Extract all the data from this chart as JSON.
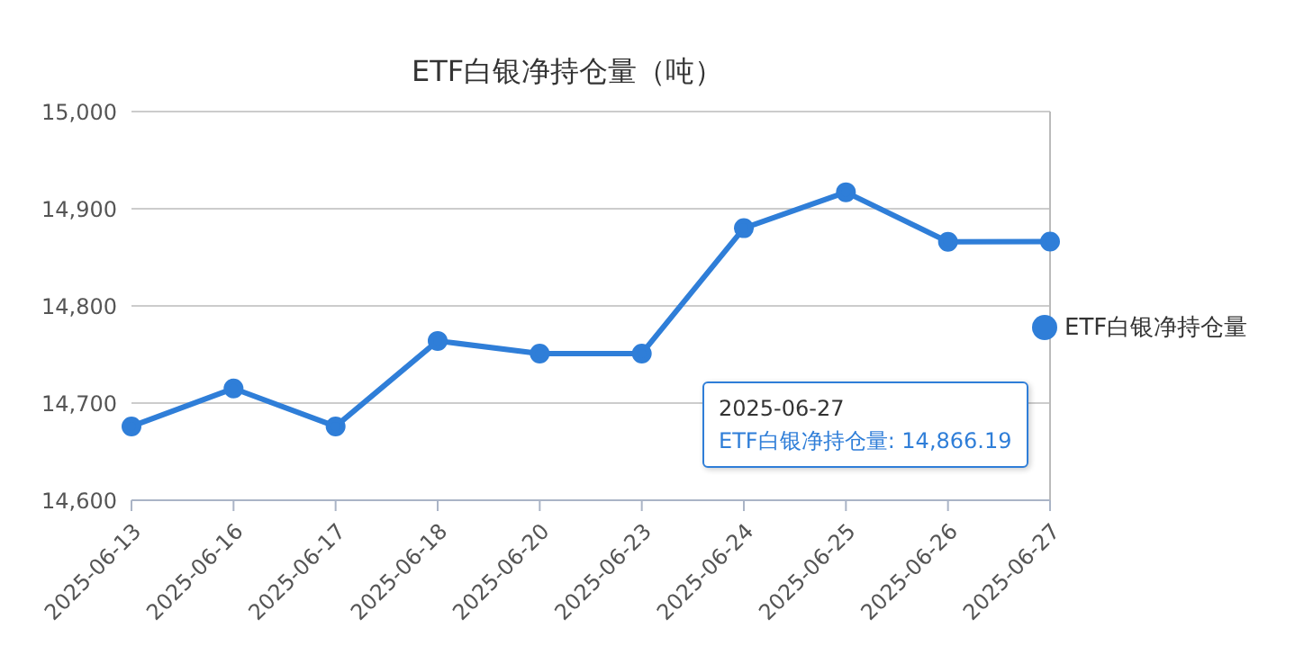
{
  "chart_data": {
    "type": "line",
    "title": "ETF白银净持仓量（吨）",
    "categories": [
      "2025-06-13",
      "2025-06-16",
      "2025-06-17",
      "2025-06-18",
      "2025-06-20",
      "2025-06-23",
      "2025-06-24",
      "2025-06-25",
      "2025-06-26",
      "2025-06-27"
    ],
    "series": [
      {
        "name": "ETF白银净持仓量",
        "color": "#2f7ed8",
        "values": [
          14676,
          14715,
          14676,
          14764,
          14751,
          14751,
          14880,
          14917,
          14866,
          14866.19
        ]
      }
    ],
    "ylim": [
      14600,
      15000
    ],
    "yticks": [
      {
        "value": 14600,
        "label": "14,600"
      },
      {
        "value": 14700,
        "label": "14,700"
      },
      {
        "value": 14800,
        "label": "14,800"
      },
      {
        "value": 14900,
        "label": "14,900"
      },
      {
        "value": 15000,
        "label": "15,000"
      }
    ],
    "grid": "y",
    "legend": "right",
    "marker": "circle",
    "line_style": "solid",
    "ref_lines": [
      {
        "axis": "x",
        "value": "2025-06-27",
        "color": "#bbbbbb"
      }
    ],
    "annotations": [
      "2025-06-27",
      "ETF白银净持仓量: 14,866.19"
    ]
  }
}
